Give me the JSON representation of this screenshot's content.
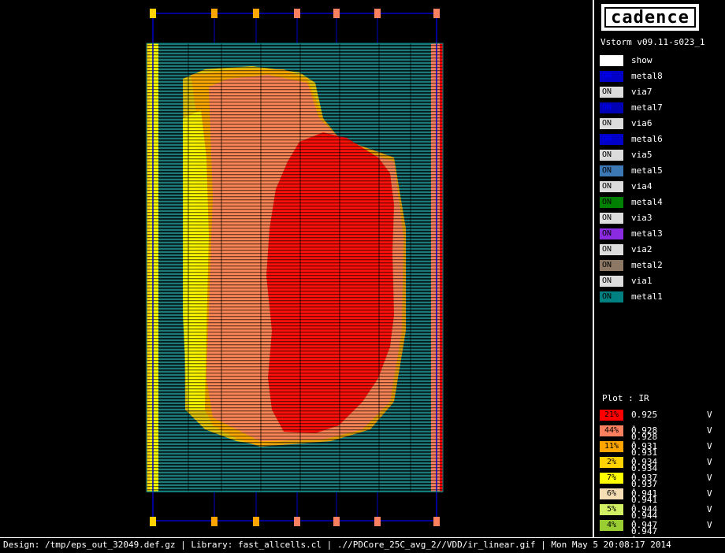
{
  "app": {
    "logo_text": "cadence",
    "version": "Vstorm v09.11-s023_1"
  },
  "layers": [
    {
      "state": "",
      "name": "show",
      "color": "#ffffff",
      "text_color": "#000000"
    },
    {
      "state": "ON",
      "name": "metal8",
      "color": "#0000c8",
      "text_color": "#0000ff"
    },
    {
      "state": "ON",
      "name": "via7",
      "color": "#dcdcdc",
      "text_color": "#000000"
    },
    {
      "state": "ON",
      "name": "metal7",
      "color": "#0000b4",
      "text_color": "#0000ff"
    },
    {
      "state": "ON",
      "name": "via6",
      "color": "#dcdcdc",
      "text_color": "#000000"
    },
    {
      "state": "ON",
      "name": "metal6",
      "color": "#0000c8",
      "text_color": "#0000ff"
    },
    {
      "state": "ON",
      "name": "via5",
      "color": "#dcdcdc",
      "text_color": "#000000"
    },
    {
      "state": "ON",
      "name": "metal5",
      "color": "#3c78b4",
      "text_color": "#000000"
    },
    {
      "state": "ON",
      "name": "via4",
      "color": "#dcdcdc",
      "text_color": "#000000"
    },
    {
      "state": "ON",
      "name": "metal4",
      "color": "#008000",
      "text_color": "#000000"
    },
    {
      "state": "ON",
      "name": "via3",
      "color": "#dcdcdc",
      "text_color": "#000000"
    },
    {
      "state": "ON",
      "name": "metal3",
      "color": "#8a2be2",
      "text_color": "#000000"
    },
    {
      "state": "ON",
      "name": "via2",
      "color": "#dcdcdc",
      "text_color": "#000000"
    },
    {
      "state": "ON",
      "name": "metal2",
      "color": "#8c7864",
      "text_color": "#000000"
    },
    {
      "state": "ON",
      "name": "via1",
      "color": "#dcdcdc",
      "text_color": "#000000"
    },
    {
      "state": "ON",
      "name": "metal1",
      "color": "#008080",
      "text_color": "#000000"
    }
  ],
  "plot": {
    "title": "Plot : IR",
    "unit": "V",
    "bins": [
      {
        "percent": "21%",
        "range": "0.925 - 0.928",
        "color": "#ff0000"
      },
      {
        "percent": "44%",
        "range": "0.928 - 0.931",
        "color": "#fa8060"
      },
      {
        "percent": "11%",
        "range": "0.931 - 0.934",
        "color": "#ffa500"
      },
      {
        "percent": "2%",
        "range": "0.934 - 0.937",
        "color": "#ffd200"
      },
      {
        "percent": "7%",
        "range": "0.937 - 0.941",
        "color": "#ffff00"
      },
      {
        "percent": "6%",
        "range": "0.941 - 0.944",
        "color": "#f5deb3"
      },
      {
        "percent": "5%",
        "range": "0.944 - 0.947",
        "color": "#d2f064"
      },
      {
        "percent": "4%",
        "range": "0.947 - 0.950",
        "color": "#9acd32"
      }
    ]
  },
  "status_bar": {
    "text": "Design: /tmp/eps_out_32049.def.gz | Library: fast_allcells.cl | .//PDCore_25C_avg_2//VDD/ir_linear.gif | Mon May  5 20:08:17 2014"
  }
}
